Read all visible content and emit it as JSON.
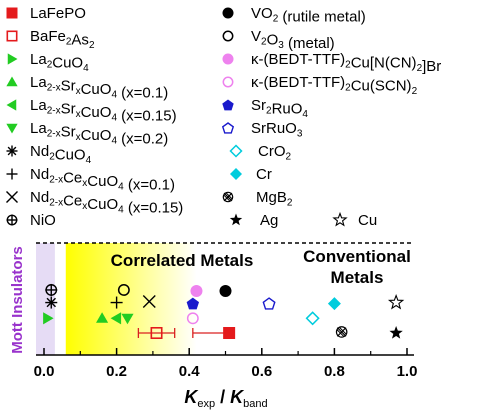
{
  "chart_data": {
    "type": "scatter",
    "xlabel": "K_exp / K_band",
    "xlabel_parts": {
      "k1": "K",
      "sub1": "exp",
      "sep": " / ",
      "k2": "K",
      "sub2": "band"
    },
    "xlim": [
      0,
      1.0
    ],
    "xticks": [
      0.0,
      0.2,
      0.4,
      0.6,
      0.8,
      1.0
    ],
    "xtick_labels": [
      "0.0",
      "0.2",
      "0.4",
      "0.6",
      "0.8",
      "1.0"
    ],
    "grid": false,
    "region_labels": {
      "mott": "Mott Insulators",
      "correlated": "Correlated Metals",
      "conventional_line1": "Conventional",
      "conventional_line2": "Metals"
    },
    "regions": {
      "mott_max": 0.03,
      "correlated_gradient": [
        0.06,
        0.42
      ]
    },
    "colors": {
      "mott_band": "#e6dcf5",
      "mott_label": "#9933cc",
      "gradient_start": "#ffff00",
      "error_bars": "#d92020"
    },
    "legend": [
      {
        "parts": [
          {
            "t": "LaFePO"
          }
        ],
        "marker": "square-filled",
        "color": "#e41a1c"
      },
      {
        "parts": [
          {
            "t": "BaFe"
          },
          {
            "t": "2",
            "s": "sub"
          },
          {
            "t": "As"
          },
          {
            "t": "2",
            "s": "sub"
          }
        ],
        "marker": "square-open",
        "color": "#e41a1c"
      },
      {
        "parts": [
          {
            "t": "La"
          },
          {
            "t": "2",
            "s": "sub"
          },
          {
            "t": "CuO"
          },
          {
            "t": "4",
            "s": "sub"
          }
        ],
        "marker": "tri-right",
        "color": "#22cc22"
      },
      {
        "parts": [
          {
            "t": "La"
          },
          {
            "t": "2-x",
            "s": "sub"
          },
          {
            "t": "Sr"
          },
          {
            "t": "x",
            "s": "sub"
          },
          {
            "t": "CuO"
          },
          {
            "t": "4",
            "s": "sub"
          },
          {
            "t": " (x=0.1)"
          }
        ],
        "marker": "tri-up",
        "color": "#22cc22"
      },
      {
        "parts": [
          {
            "t": "La"
          },
          {
            "t": "2-x",
            "s": "sub"
          },
          {
            "t": "Sr"
          },
          {
            "t": "x",
            "s": "sub"
          },
          {
            "t": "CuO"
          },
          {
            "t": "4",
            "s": "sub"
          },
          {
            "t": " (x=0.15)"
          }
        ],
        "marker": "tri-left",
        "color": "#22cc22"
      },
      {
        "parts": [
          {
            "t": "La"
          },
          {
            "t": "2-x",
            "s": "sub"
          },
          {
            "t": "Sr"
          },
          {
            "t": "x",
            "s": "sub"
          },
          {
            "t": "CuO"
          },
          {
            "t": "4",
            "s": "sub"
          },
          {
            "t": " (x=0.2)"
          }
        ],
        "marker": "tri-down",
        "color": "#22cc22"
      },
      {
        "parts": [
          {
            "t": "Nd"
          },
          {
            "t": "2",
            "s": "sub"
          },
          {
            "t": "CuO"
          },
          {
            "t": "4",
            "s": "sub"
          }
        ],
        "marker": "asterisk",
        "color": "#000000"
      },
      {
        "parts": [
          {
            "t": "Nd"
          },
          {
            "t": "2-x",
            "s": "sub"
          },
          {
            "t": "Ce"
          },
          {
            "t": "x",
            "s": "sub"
          },
          {
            "t": "CuO"
          },
          {
            "t": "4",
            "s": "sub"
          },
          {
            "t": " (x=0.1)"
          }
        ],
        "marker": "plus",
        "color": "#000000"
      },
      {
        "parts": [
          {
            "t": "Nd"
          },
          {
            "t": "2-x",
            "s": "sub"
          },
          {
            "t": "Ce"
          },
          {
            "t": "x",
            "s": "sub"
          },
          {
            "t": "CuO"
          },
          {
            "t": "4",
            "s": "sub"
          },
          {
            "t": " (x=0.15)"
          }
        ],
        "marker": "cross",
        "color": "#000000"
      },
      {
        "parts": [
          {
            "t": "NiO"
          }
        ],
        "marker": "circle-plus",
        "color": "#000000"
      },
      {
        "parts": [
          {
            "t": "VO"
          },
          {
            "t": "2",
            "s": "sub"
          },
          {
            "t": " (rutile metal)"
          }
        ],
        "marker": "circle-filled",
        "color": "#000000"
      },
      {
        "parts": [
          {
            "t": "V"
          },
          {
            "t": "2",
            "s": "sub"
          },
          {
            "t": "O"
          },
          {
            "t": "3",
            "s": "sub"
          },
          {
            "t": " (metal)"
          }
        ],
        "marker": "circle-open",
        "color": "#000000"
      },
      {
        "parts": [
          {
            "t": "κ-(BEDT-TTF)"
          },
          {
            "t": "2",
            "s": "sub"
          },
          {
            "t": "Cu[N(CN)"
          },
          {
            "t": "2",
            "s": "sub"
          },
          {
            "t": "]Br"
          }
        ],
        "marker": "circle-filled",
        "color": "#ee82ee"
      },
      {
        "parts": [
          {
            "t": "κ-(BEDT-TTF)"
          },
          {
            "t": "2",
            "s": "sub"
          },
          {
            "t": "Cu(SCN)"
          },
          {
            "t": "2",
            "s": "sub"
          }
        ],
        "marker": "circle-open",
        "color": "#ee82ee"
      },
      {
        "parts": [
          {
            "t": "Sr"
          },
          {
            "t": "2",
            "s": "sub"
          },
          {
            "t": "RuO"
          },
          {
            "t": "4",
            "s": "sub"
          }
        ],
        "marker": "pentagon-filled",
        "color": "#1a1acc"
      },
      {
        "parts": [
          {
            "t": "SrRuO"
          },
          {
            "t": "3",
            "s": "sub"
          }
        ],
        "marker": "pentagon-open",
        "color": "#1a1acc"
      },
      {
        "parts": [
          {
            "t": "CrO"
          },
          {
            "t": "2",
            "s": "sub"
          }
        ],
        "marker": "diamond-open",
        "color": "#00ccdd"
      },
      {
        "parts": [
          {
            "t": "Cr"
          }
        ],
        "marker": "diamond-filled",
        "color": "#00ccdd"
      },
      {
        "parts": [
          {
            "t": "MgB"
          },
          {
            "t": "2",
            "s": "sub"
          }
        ],
        "marker": "circle-x",
        "color": "#000000"
      },
      {
        "parts": [
          {
            "t": "Ag"
          }
        ],
        "marker": "star-filled",
        "color": "#000000"
      },
      {
        "parts": [
          {
            "t": "Cu"
          }
        ],
        "marker": "star-open",
        "color": "#000000"
      }
    ],
    "points": [
      {
        "label": "LaFePO",
        "marker": "square-filled",
        "color": "#e41a1c",
        "x": 0.51,
        "row": 2,
        "xerr": [
          0.41,
          0.51
        ]
      },
      {
        "label": "BaFe2As2",
        "marker": "square-open",
        "color": "#e41a1c",
        "x": 0.31,
        "row": 2,
        "xerr": [
          0.26,
          0.36
        ]
      },
      {
        "label": "La2CuO4",
        "marker": "tri-right",
        "color": "#22cc22",
        "x": 0.01,
        "row": 1.3
      },
      {
        "label": "La2-xSrxCuO4 (x=0.1)",
        "marker": "tri-up",
        "color": "#22cc22",
        "x": 0.16,
        "row": 1.3
      },
      {
        "label": "La2-xSrxCuO4 (x=0.15)",
        "marker": "tri-left",
        "color": "#22cc22",
        "x": 0.2,
        "row": 1.3
      },
      {
        "label": "La2-xSrxCuO4 (x=0.2)",
        "marker": "tri-down",
        "color": "#22cc22",
        "x": 0.23,
        "row": 1.3
      },
      {
        "label": "Nd2CuO4",
        "marker": "asterisk",
        "color": "#000000",
        "x": 0.02,
        "row": 0.55
      },
      {
        "label": "Nd2-xCexCuO4 (x=0.1)",
        "marker": "plus",
        "color": "#000000",
        "x": 0.2,
        "row": 0.55
      },
      {
        "label": "Nd2-xCexCuO4 (x=0.15)",
        "marker": "cross",
        "color": "#000000",
        "x": 0.29,
        "row": 0.5
      },
      {
        "label": "NiO",
        "marker": "circle-plus",
        "color": "#000000",
        "x": 0.02,
        "row": -0.05
      },
      {
        "label": "VO2 (rutile metal)",
        "marker": "circle-filled",
        "color": "#000000",
        "x": 0.5,
        "row": 0
      },
      {
        "label": "V2O3 (metal)",
        "marker": "circle-open",
        "color": "#000000",
        "x": 0.22,
        "row": -0.05
      },
      {
        "label": "κ-(BEDT-TTF)2Cu[N(CN)2]Br",
        "marker": "circle-filled",
        "color": "#ee82ee",
        "x": 0.42,
        "row": 0
      },
      {
        "label": "κ-(BEDT-TTF)2Cu(SCN)2",
        "marker": "circle-open",
        "color": "#ee82ee",
        "x": 0.41,
        "row": 1.3
      },
      {
        "label": "Sr2RuO4",
        "marker": "pentagon-filled",
        "color": "#1a1acc",
        "x": 0.41,
        "row": 0.6
      },
      {
        "label": "SrRuO3",
        "marker": "pentagon-open",
        "color": "#1a1acc",
        "x": 0.62,
        "row": 0.6
      },
      {
        "label": "CrO2",
        "marker": "diamond-open",
        "color": "#00ccdd",
        "x": 0.74,
        "row": 1.3
      },
      {
        "label": "Cr",
        "marker": "diamond-filled",
        "color": "#00ccdd",
        "x": 0.8,
        "row": 0.6
      },
      {
        "label": "MgB2",
        "marker": "circle-x",
        "color": "#000000",
        "x": 0.82,
        "row": 1.95
      },
      {
        "label": "Ag",
        "marker": "star-filled",
        "color": "#000000",
        "x": 0.97,
        "row": 2
      },
      {
        "label": "Cu",
        "marker": "star-open",
        "color": "#000000",
        "x": 0.97,
        "row": 0.55
      }
    ]
  }
}
